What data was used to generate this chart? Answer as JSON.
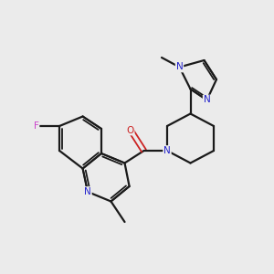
{
  "bg_color": "#ebebeb",
  "bond_color": "#1a1a1a",
  "N_color": "#2222cc",
  "O_color": "#cc2222",
  "F_color": "#cc44cc",
  "lw": 1.6,
  "lw_dbl": 1.3,
  "figsize": [
    3.0,
    3.0
  ],
  "dpi": 100,
  "xlim": [
    0,
    10
  ],
  "ylim": [
    0,
    10
  ]
}
